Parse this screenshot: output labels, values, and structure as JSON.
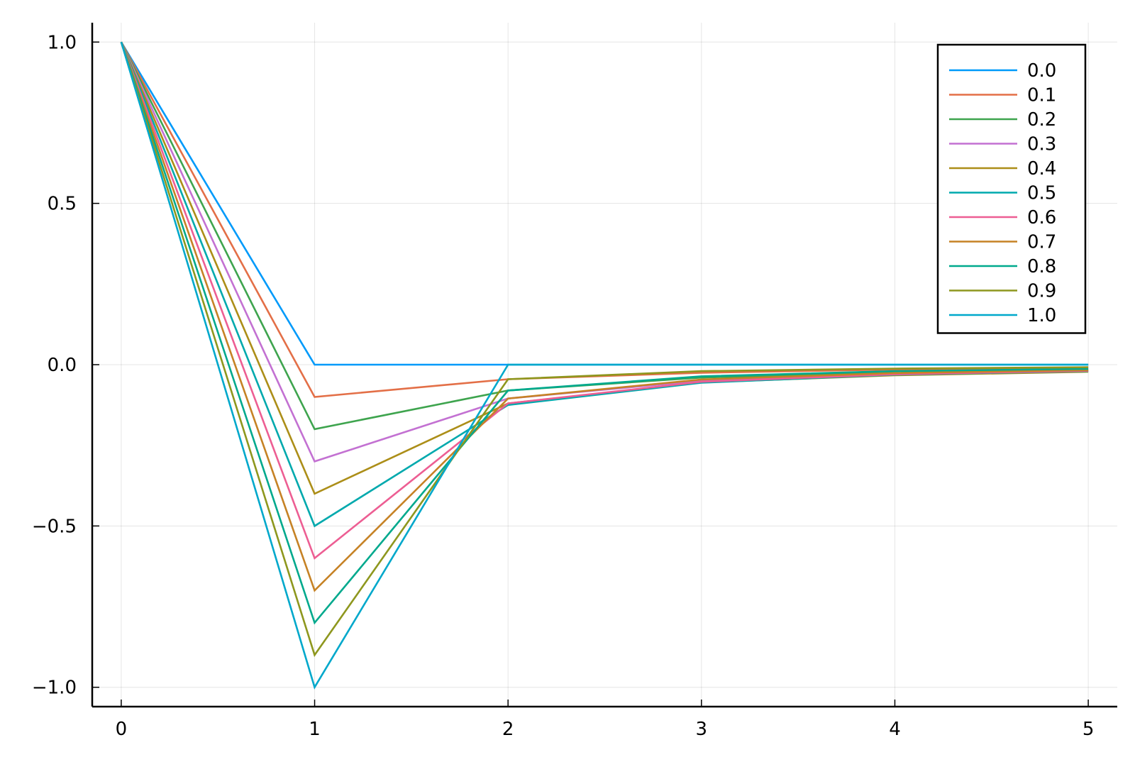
{
  "chart_data": {
    "type": "line",
    "title": "",
    "xlabel": "",
    "ylabel": "",
    "x": [
      0,
      1,
      2,
      3,
      4,
      5
    ],
    "xlim": [
      -0.15,
      5.15
    ],
    "ylim": [
      -1.06,
      1.06
    ],
    "x_ticks": [
      0,
      1,
      2,
      3,
      4,
      5
    ],
    "x_tick_labels": [
      "0",
      "1",
      "2",
      "3",
      "4",
      "5"
    ],
    "y_ticks": [
      -1.0,
      -0.5,
      0.0,
      0.5,
      1.0
    ],
    "y_tick_labels": [
      "−1.0",
      "−0.5",
      "0.0",
      "0.5",
      "1.0"
    ],
    "grid": true,
    "legend_position": "top-right",
    "series": [
      {
        "name": "0.0",
        "color": "#009AFA",
        "values": [
          1.0,
          0.0,
          0.0,
          0.0,
          0.0,
          0.0
        ]
      },
      {
        "name": "0.1",
        "color": "#E36F47",
        "values": [
          1.0,
          -0.1,
          -0.045,
          -0.025,
          -0.015,
          -0.01
        ]
      },
      {
        "name": "0.2",
        "color": "#3EA44E",
        "values": [
          1.0,
          -0.2,
          -0.08,
          -0.04,
          -0.025,
          -0.016
        ]
      },
      {
        "name": "0.3",
        "color": "#C371D2",
        "values": [
          1.0,
          -0.3,
          -0.105,
          -0.05,
          -0.03,
          -0.02
        ]
      },
      {
        "name": "0.4",
        "color": "#AC8E18",
        "values": [
          1.0,
          -0.4,
          -0.12,
          -0.055,
          -0.033,
          -0.022
        ]
      },
      {
        "name": "0.5",
        "color": "#00A9AD",
        "values": [
          1.0,
          -0.5,
          -0.125,
          -0.056,
          -0.031,
          -0.02
        ]
      },
      {
        "name": "0.6",
        "color": "#ED5E93",
        "values": [
          1.0,
          -0.6,
          -0.12,
          -0.053,
          -0.03,
          -0.019
        ]
      },
      {
        "name": "0.7",
        "color": "#C68225",
        "values": [
          1.0,
          -0.7,
          -0.105,
          -0.046,
          -0.026,
          -0.017
        ]
      },
      {
        "name": "0.8",
        "color": "#00A98D",
        "values": [
          1.0,
          -0.8,
          -0.08,
          -0.036,
          -0.02,
          -0.013
        ]
      },
      {
        "name": "0.9",
        "color": "#8E971E",
        "values": [
          1.0,
          -0.9,
          -0.045,
          -0.02,
          -0.012,
          -0.008
        ]
      },
      {
        "name": "1.0",
        "color": "#00A8CB",
        "values": [
          1.0,
          -1.0,
          0.0,
          0.0,
          0.0,
          0.0
        ]
      }
    ]
  }
}
